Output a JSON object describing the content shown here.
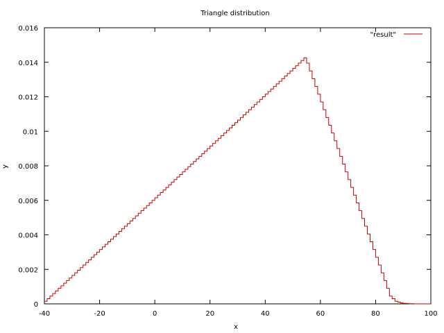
{
  "chart_data": {
    "type": "line",
    "title": "Triangle distribution",
    "xlabel": "x",
    "ylabel": "y",
    "xlim": [
      -40,
      100
    ],
    "ylim": [
      0,
      0.016
    ],
    "xticks": [
      -40,
      -20,
      0,
      20,
      40,
      60,
      80,
      100
    ],
    "xtick_labels": [
      "-40",
      "-20",
      "0",
      "20",
      "40",
      "60",
      "80",
      "100"
    ],
    "yticks": [
      0,
      0.002,
      0.004,
      0.006,
      0.008,
      0.01,
      0.012,
      0.014,
      0.016
    ],
    "ytick_labels": [
      "0",
      "0.002",
      "0.004",
      "0.006",
      "0.008",
      "0.01",
      "0.012",
      "0.014",
      "0.016"
    ],
    "grid": false,
    "legend": "top-right",
    "series": [
      {
        "name": "\"result\"",
        "color": "#cc0000",
        "style": "steps",
        "x": [
          -40,
          -39,
          -38,
          -37,
          -36,
          -35,
          -34,
          -33,
          -32,
          -31,
          -30,
          -29,
          -28,
          -27,
          -26,
          -25,
          -24,
          -23,
          -22,
          -21,
          -20,
          -19,
          -18,
          -17,
          -16,
          -15,
          -14,
          -13,
          -12,
          -11,
          -10,
          -9,
          -8,
          -7,
          -6,
          -5,
          -4,
          -3,
          -2,
          -1,
          0,
          1,
          2,
          3,
          4,
          5,
          6,
          7,
          8,
          9,
          10,
          11,
          12,
          13,
          14,
          15,
          16,
          17,
          18,
          19,
          20,
          21,
          22,
          23,
          24,
          25,
          26,
          27,
          28,
          29,
          30,
          31,
          32,
          33,
          34,
          35,
          36,
          37,
          38,
          39,
          40,
          41,
          42,
          43,
          44,
          45,
          46,
          47,
          48,
          49,
          50,
          51,
          52,
          53,
          54,
          55,
          56,
          57,
          58,
          59,
          60,
          61,
          62,
          63,
          64,
          65,
          66,
          67,
          68,
          69,
          70,
          71,
          72,
          73,
          74,
          75,
          76,
          77,
          78,
          79,
          80,
          81,
          82,
          83,
          84,
          85,
          86,
          87,
          88,
          89,
          90,
          91,
          92,
          93,
          94,
          95,
          96,
          97,
          98,
          99
        ],
        "y": [
          0.00015,
          0.0003,
          0.00045,
          0.0006,
          0.00075,
          0.0009,
          0.00105,
          0.0012,
          0.00135,
          0.0015,
          0.00165,
          0.0018,
          0.00195,
          0.0021,
          0.00225,
          0.0024,
          0.00255,
          0.0027,
          0.00285,
          0.003,
          0.00315,
          0.0033,
          0.00345,
          0.0036,
          0.00375,
          0.0039,
          0.00405,
          0.0042,
          0.00435,
          0.0045,
          0.00465,
          0.0048,
          0.00495,
          0.0051,
          0.00525,
          0.0054,
          0.00555,
          0.0057,
          0.00585,
          0.006,
          0.00615,
          0.0063,
          0.00645,
          0.0066,
          0.00675,
          0.0069,
          0.00705,
          0.0072,
          0.00735,
          0.0075,
          0.00765,
          0.0078,
          0.00795,
          0.0081,
          0.00825,
          0.0084,
          0.00855,
          0.0087,
          0.00885,
          0.009,
          0.00915,
          0.0093,
          0.00945,
          0.0096,
          0.00975,
          0.0099,
          0.01005,
          0.0102,
          0.01035,
          0.0105,
          0.01065,
          0.0108,
          0.01095,
          0.0111,
          0.01125,
          0.0114,
          0.01155,
          0.0117,
          0.01185,
          0.012,
          0.01215,
          0.0123,
          0.01245,
          0.0126,
          0.01275,
          0.0129,
          0.01305,
          0.0132,
          0.01335,
          0.0135,
          0.01365,
          0.0138,
          0.01395,
          0.0141,
          0.01425,
          0.01395,
          0.0135,
          0.01305,
          0.0126,
          0.01215,
          0.0117,
          0.01125,
          0.0108,
          0.01035,
          0.0099,
          0.00945,
          0.009,
          0.00855,
          0.0081,
          0.00765,
          0.0072,
          0.00675,
          0.0063,
          0.00585,
          0.0054,
          0.00495,
          0.0045,
          0.00405,
          0.0036,
          0.00315,
          0.0027,
          0.00225,
          0.0018,
          0.00135,
          0.0009,
          0.00045,
          0.0003,
          0.00015,
          0.0001,
          5e-05,
          3e-05,
          2e-05,
          1e-05,
          1e-05,
          0.0,
          0.0,
          0.0,
          0.0,
          0.0,
          0.0
        ]
      }
    ]
  }
}
